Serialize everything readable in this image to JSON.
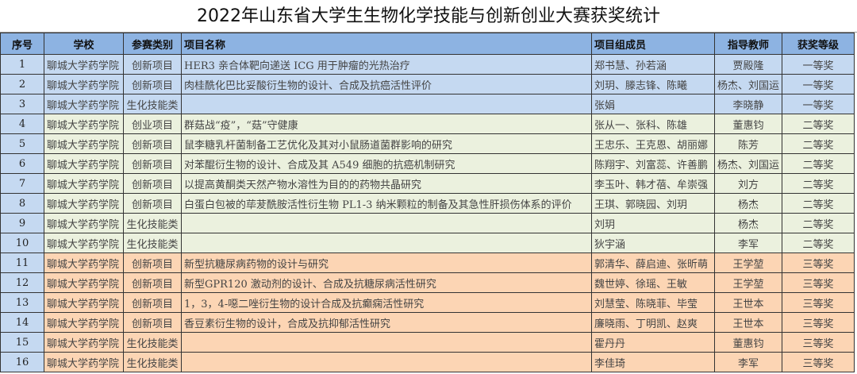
{
  "title": "2022年山东省大学生生物化学技能与创新创业大赛获奖统计",
  "headers": [
    "序号",
    "学校",
    "参赛类别",
    "项目名称",
    "项目组成员",
    "指导教师",
    "获奖等级"
  ],
  "colors": {
    "header": "#8db3e2",
    "first_prize": "#c5d9f1",
    "second_prize": "#ebf1de",
    "third_prize": "#fcd5b4"
  },
  "rows": [
    {
      "no": "1",
      "school": "聊城大学药学院",
      "category": "创新项目",
      "project": "HER3 亲合体靶向递送 ICG 用于肿瘤的光热治疗",
      "members": "郑书慧、孙若涵",
      "advisor": "贾殿隆",
      "award": "一等奖",
      "tier": "b"
    },
    {
      "no": "2",
      "school": "聊城大学药学院",
      "category": "创新项目",
      "project": "肉桂酰化巴比妥酸衍生物的设计、合成及抗癌活性评价",
      "members": "刘玥、滕志锋、陈曦",
      "advisor": "杨杰、刘国运",
      "award": "一等奖",
      "tier": "b"
    },
    {
      "no": "3",
      "school": "聊城大学药学院",
      "category": "生化技能类",
      "project": "",
      "members": "张娟",
      "advisor": "李晓静",
      "award": "一等奖",
      "tier": "b"
    },
    {
      "no": "4",
      "school": "聊城大学药学院",
      "category": "创业项目",
      "project": "群菇战“疫”，“菇”守健康",
      "members": "张从一、张科、陈雄",
      "advisor": "董惠钧",
      "award": "二等奖",
      "tier": "g"
    },
    {
      "no": "5",
      "school": "聊城大学药学院",
      "category": "创新项目",
      "project": "鼠李糖乳杆菌制备工艺优化及其对小鼠肠道菌群影响的研究",
      "members": "王忠乐、王克恩、胡丽娜",
      "advisor": "陈芳",
      "award": "二等奖",
      "tier": "g"
    },
    {
      "no": "6",
      "school": "聊城大学药学院",
      "category": "创新项目",
      "project": "对苯醌衍生物的设计、合成及其 A549 细胞的抗癌机制研究",
      "members": "陈翔宇、刘富蕊、许善鹏",
      "advisor": "杨杰、刘国运",
      "award": "二等奖",
      "tier": "g"
    },
    {
      "no": "7",
      "school": "聊城大学药学院",
      "category": "创新项目",
      "project": "以提高黄酮类天然产物水溶性为目的的药物共晶研究",
      "members": "李玉叶、韩才蓓、牟崇强",
      "advisor": "刘方",
      "award": "二等奖",
      "tier": "g"
    },
    {
      "no": "8",
      "school": "聊城大学药学院",
      "category": "创新项目",
      "project": "白蛋白包被的荜茇酰胺活性衍生物 PL1-3 纳米颗粒的制备及其急性肝损伤体系的评价",
      "members": "王琪、郭晓园、刘玥",
      "advisor": "杨杰",
      "award": "二等奖",
      "tier": "g"
    },
    {
      "no": "9",
      "school": "聊城大学药学院",
      "category": "生化技能类",
      "project": "",
      "members": "刘玥",
      "advisor": "杨杰",
      "award": "二等奖",
      "tier": "g"
    },
    {
      "no": "10",
      "school": "聊城大学药学院",
      "category": "生化技能类",
      "project": "",
      "members": "狄宇涵",
      "advisor": "李军",
      "award": "二等奖",
      "tier": "g"
    },
    {
      "no": "11",
      "school": "聊城大学药学院",
      "category": "创新项目",
      "project": "新型抗糖尿病药物的设计与研究",
      "members": "郭清华、薛启迪、张昕萌",
      "advisor": "王学堃",
      "award": "三等奖",
      "tier": "o"
    },
    {
      "no": "12",
      "school": "聊城大学药学院",
      "category": "创新项目",
      "project": "新型GPR120 激动剂的设计、合成及抗糖尿病活性研究",
      "members": "魏世婷、徐瑶、王敏",
      "advisor": "王学堃",
      "award": "三等奖",
      "tier": "o"
    },
    {
      "no": "13",
      "school": "聊城大学药学院",
      "category": "创新项目",
      "project": "1，3，4-噁二唑衍生物的设计合成及抗癫痫活性研究",
      "members": "刘慧莹、陈晓菲、毕莹",
      "advisor": "王世本",
      "award": "三等奖",
      "tier": "o"
    },
    {
      "no": "14",
      "school": "聊城大学药学院",
      "category": "创新项目",
      "project": "香豆素衍生物的设计，合成及抗抑郁活性研究",
      "members": "廉晓雨、丁明凯、赵爽",
      "advisor": "王世本",
      "award": "三等奖",
      "tier": "o"
    },
    {
      "no": "15",
      "school": "聊城大学药学院",
      "category": "生化技能类",
      "project": "",
      "members": "霍丹丹",
      "advisor": "董惠钧",
      "award": "三等奖",
      "tier": "o"
    },
    {
      "no": "16",
      "school": "聊城大学药学院",
      "category": "生化技能类",
      "project": "",
      "members": "李佳琦",
      "advisor": "李军",
      "award": "三等奖",
      "tier": "o"
    }
  ]
}
